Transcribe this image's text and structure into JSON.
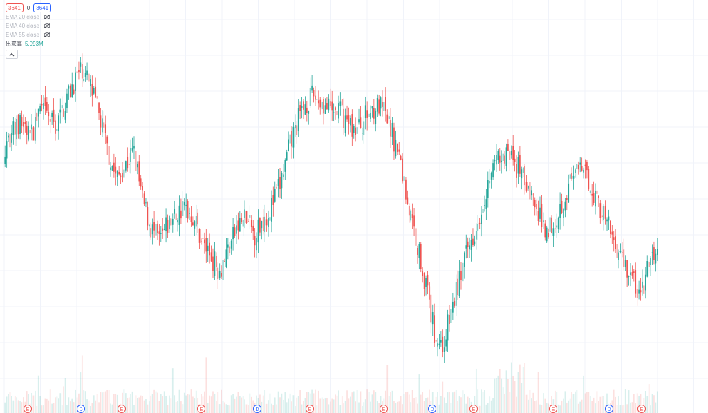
{
  "legend": {
    "price_left": "3641",
    "separator": "0",
    "price_right": "3641",
    "indicators": [
      {
        "label": "EMA 20 close"
      },
      {
        "label": "EMA 40 close"
      },
      {
        "label": "EMA 55 close"
      }
    ],
    "volume_label": "出来高",
    "volume_value": "5.093M"
  },
  "colors": {
    "up": "#26a69a",
    "down": "#ef5350",
    "grid": "#f0f3fa",
    "earnings_marker": "#ef5350",
    "dividend_marker": "#2962ff"
  },
  "event_markers": [
    {
      "type": "earnings",
      "label": "E"
    },
    {
      "type": "dividend",
      "label": "D"
    },
    {
      "type": "earnings",
      "label": "E"
    },
    {
      "type": "earnings",
      "label": "E"
    },
    {
      "type": "dividend",
      "label": "D"
    },
    {
      "type": "earnings",
      "label": "E"
    },
    {
      "type": "earnings",
      "label": "E"
    },
    {
      "type": "dividend",
      "label": "D"
    },
    {
      "type": "earnings",
      "label": "E"
    },
    {
      "type": "earnings",
      "label": "E"
    },
    {
      "type": "dividend",
      "label": "D"
    },
    {
      "type": "earnings",
      "label": "E"
    }
  ],
  "chart_data": {
    "type": "candlestick",
    "title": "",
    "xlabel": "",
    "ylabel": "",
    "grid": true,
    "volume_pane": true,
    "series_close_path": [
      0.68,
      0.72,
      0.74,
      0.7,
      0.78,
      0.76,
      0.73,
      0.8,
      0.86,
      0.9,
      0.84,
      0.76,
      0.66,
      0.58,
      0.62,
      0.66,
      0.52,
      0.44,
      0.4,
      0.45,
      0.48,
      0.5,
      0.47,
      0.4,
      0.36,
      0.32,
      0.38,
      0.44,
      0.47,
      0.42,
      0.46,
      0.5,
      0.56,
      0.66,
      0.74,
      0.8,
      0.82,
      0.8,
      0.77,
      0.78,
      0.74,
      0.72,
      0.76,
      0.79,
      0.78,
      0.72,
      0.64,
      0.5,
      0.4,
      0.28,
      0.14,
      0.1,
      0.2,
      0.3,
      0.38,
      0.46,
      0.55,
      0.62,
      0.66,
      0.64,
      0.6,
      0.56,
      0.48,
      0.44,
      0.46,
      0.52,
      0.58,
      0.6,
      0.58,
      0.52,
      0.46,
      0.4,
      0.35,
      0.3,
      0.24,
      0.33,
      0.38
    ]
  }
}
